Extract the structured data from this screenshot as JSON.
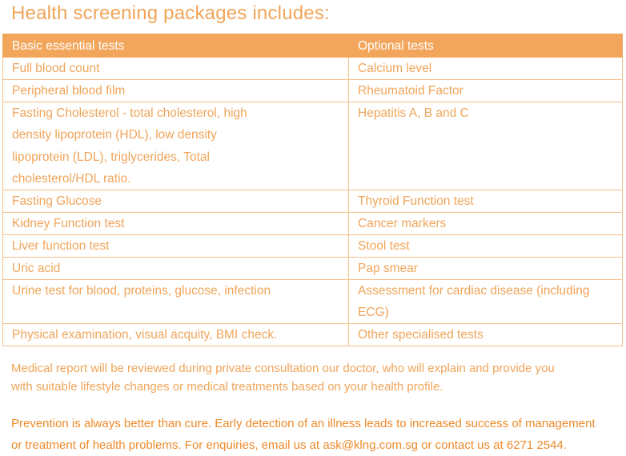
{
  "title": "Health screening packages includes:",
  "table": {
    "headers": [
      "Basic essential tests",
      "Optional tests"
    ],
    "rows": [
      {
        "basic": "Full blood count",
        "optional": "Calcium level"
      },
      {
        "basic": "Peripheral blood film",
        "optional": "Rheumatoid Factor"
      },
      {
        "basic_lines": [
          "Fasting Cholesterol - total cholesterol, high",
          "density lipoprotein (HDL), low density",
          "lipoprotein (LDL), triglycerides, Total",
          "cholesterol/HDL ratio."
        ],
        "optional": "Hepatitis A, B and C"
      },
      {
        "basic": "Fasting Glucose",
        "optional": "Thyroid Function test"
      },
      {
        "basic": "Kidney Function test",
        "optional": "Cancer markers"
      },
      {
        "basic": "Liver function test",
        "optional": "Stool test"
      },
      {
        "basic": "Uric acid",
        "optional": "Pap smear"
      },
      {
        "basic": "Urine test for blood, proteins, glucose, infection",
        "optional_lines": [
          "Assessment for cardiac disease (including",
          "ECG)"
        ]
      },
      {
        "basic": "Physical examination, visual acquity, BMI check.",
        "optional": "Other specialised tests"
      }
    ]
  },
  "note_lines": [
    "Medical report will be reviewed during private consultation our doctor, who will explain and provide you",
    "with suitable lifestyle changes or medical treatments based on your health profile."
  ],
  "cta_lines": [
    "Prevention is always better than cure. Early detection of an illness leads to increased success of management",
    "or treatment of health problems. For enquiries, email us at ask@klng.com.sg or contact us at 6271 2544."
  ],
  "colors": {
    "accent": "#F2A65C",
    "text": "#F0A55A",
    "cta": "#EE8A2A",
    "border": "#F6C08D"
  }
}
